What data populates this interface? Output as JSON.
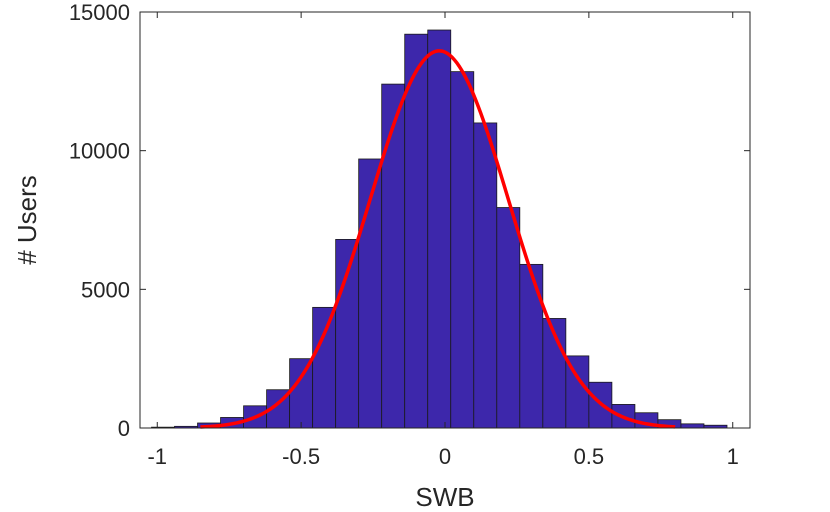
{
  "chart_data": {
    "type": "bar",
    "xlabel": "SWB",
    "ylabel": "# Users",
    "xlim": [
      -1.06,
      1.06
    ],
    "ylim": [
      0,
      15000
    ],
    "x_ticks": [
      -1,
      -0.5,
      0,
      0.5,
      1
    ],
    "x_tick_labels": [
      "-1",
      "-0.5",
      "0",
      "0.5",
      "1"
    ],
    "y_ticks": [
      0,
      5000,
      10000,
      15000
    ],
    "y_tick_labels": [
      "0",
      "5000",
      "10000",
      "15000"
    ],
    "bin_edges": [
      -1.02,
      -0.94,
      -0.86,
      -0.78,
      -0.7,
      -0.62,
      -0.54,
      -0.46,
      -0.38,
      -0.3,
      -0.22,
      -0.14,
      -0.06,
      0.02,
      0.1,
      0.18,
      0.26,
      0.34,
      0.42,
      0.5,
      0.58,
      0.66,
      0.74,
      0.82,
      0.9,
      0.98
    ],
    "counts": [
      30,
      60,
      180,
      380,
      800,
      1380,
      2500,
      4350,
      6800,
      9700,
      12400,
      14200,
      14350,
      12850,
      11000,
      7950,
      5900,
      3950,
      2600,
      1650,
      850,
      550,
      300,
      150,
      100
    ],
    "fit_curve": {
      "type": "normal",
      "mean": -0.02,
      "sd": 0.24,
      "peak": 13600,
      "x_range": [
        -0.85,
        0.8
      ]
    },
    "colors": {
      "bars": "#3d27ab",
      "bar_edge": "#1a1a1a",
      "fit_line": "#ff0000",
      "axis": "#262626"
    }
  }
}
